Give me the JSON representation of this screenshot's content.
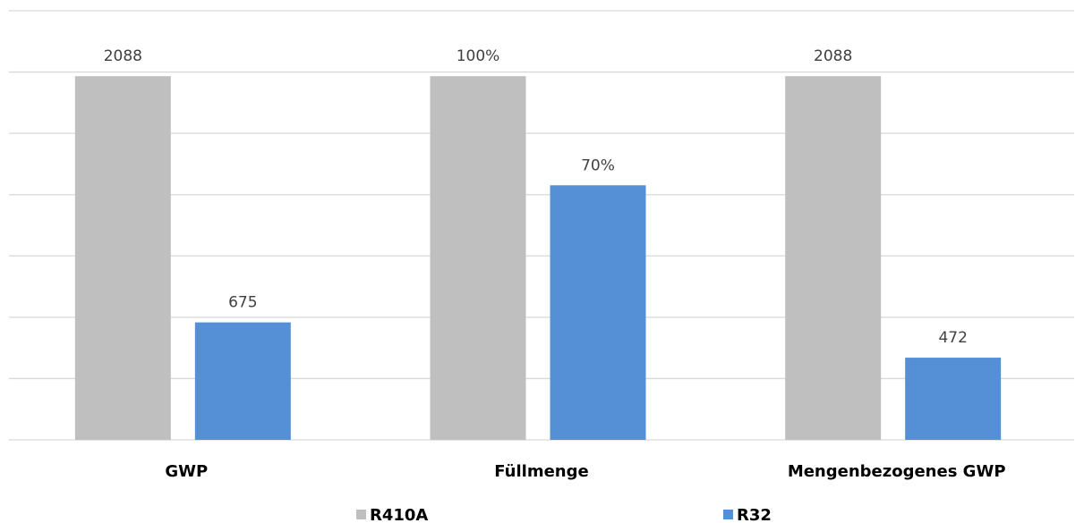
{
  "chart_data": {
    "type": "bar",
    "categories": [
      "GWP",
      "Füllmenge",
      "Mengenbezogenes GWP"
    ],
    "series": [
      {
        "name": "R410A",
        "values": [
          100,
          100,
          100
        ],
        "data_labels": [
          "2088",
          "100%",
          "2088"
        ],
        "color": "#bfbfbf"
      },
      {
        "name": "R32",
        "values": [
          32.3,
          70,
          22.6
        ],
        "data_labels": [
          "675",
          "70%",
          "472"
        ],
        "color": "#5590d6"
      }
    ],
    "ylim": [
      0,
      118
    ],
    "grid": true,
    "legend_position": "bottom",
    "gridline_color": "#d9d9d9"
  }
}
